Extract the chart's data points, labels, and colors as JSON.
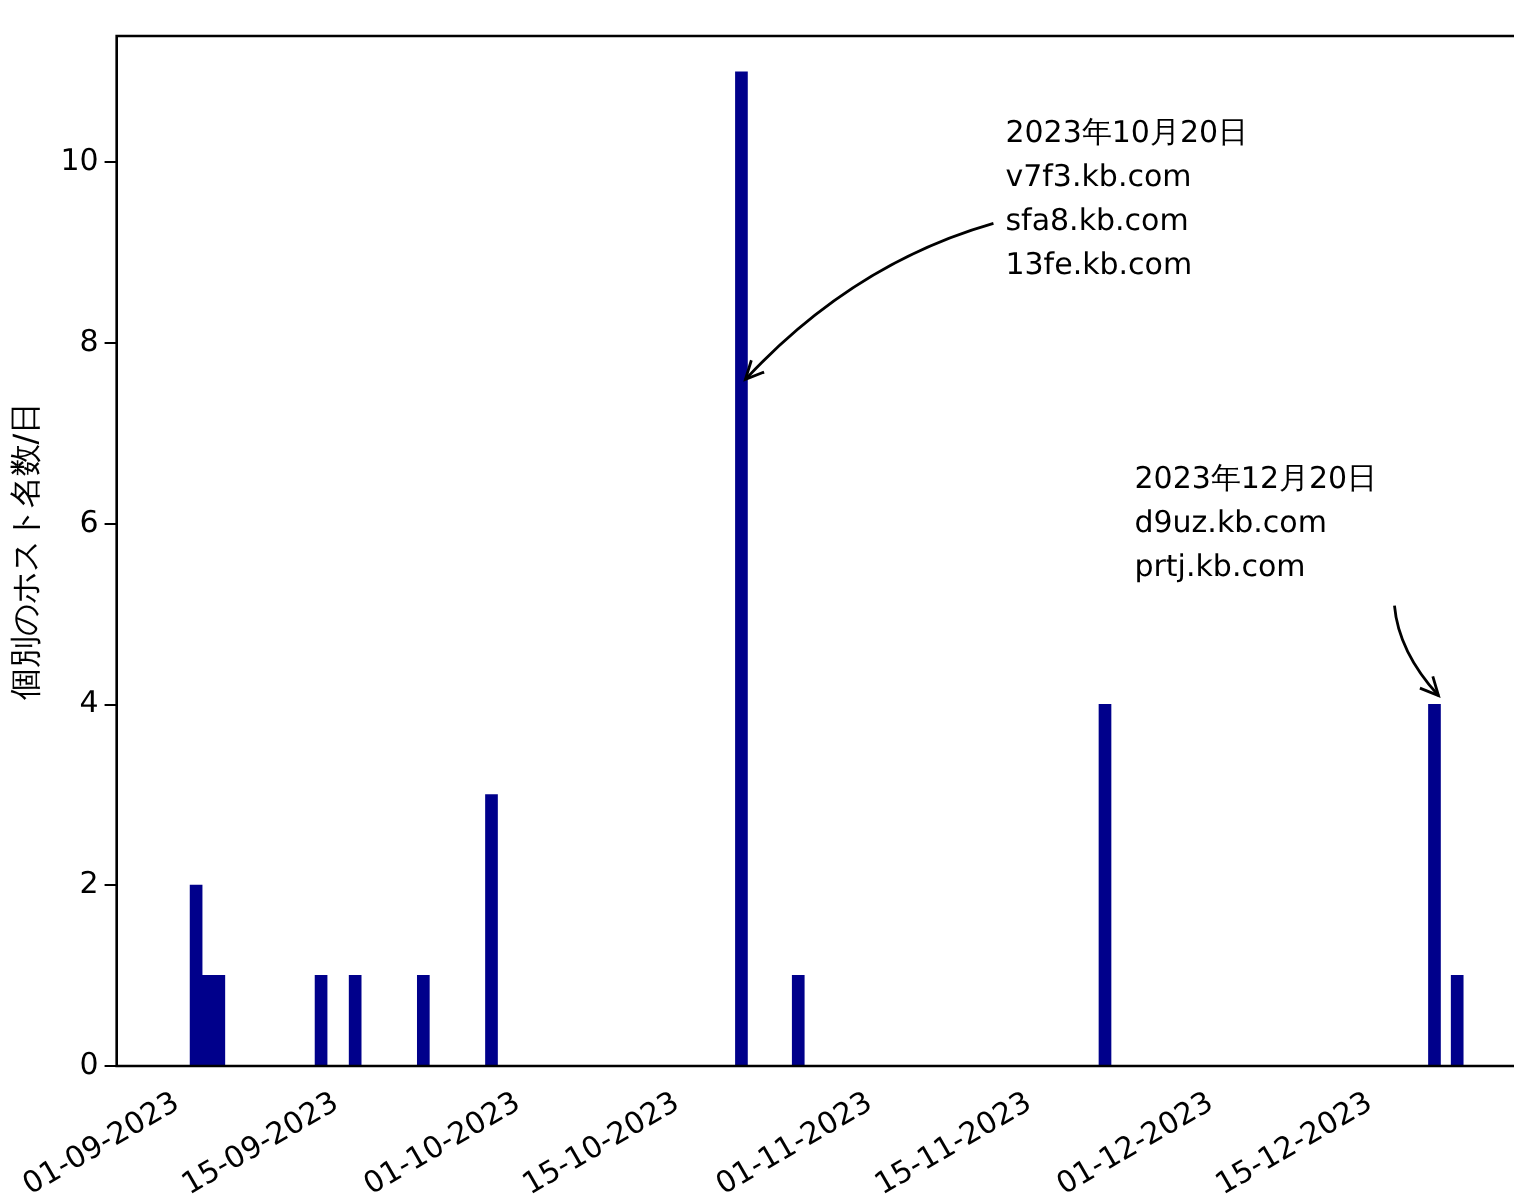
{
  "chart_data": {
    "type": "bar",
    "ylabel": "個別のホスト名数/日",
    "x": [
      "2023-09-02",
      "2023-09-03",
      "2023-09-04",
      "2023-09-13",
      "2023-09-16",
      "2023-09-22",
      "2023-09-28",
      "2023-10-20",
      "2023-10-25",
      "2023-11-21",
      "2023-12-20",
      "2023-12-22"
    ],
    "values": [
      2,
      1,
      1,
      1,
      1,
      1,
      3,
      11,
      1,
      4,
      4,
      1
    ],
    "color": "#00008b",
    "xlim": [
      "2023-08-26",
      "2023-12-27"
    ],
    "xticks": [
      {
        "value": "2023-09-01",
        "label": "01-09-2023"
      },
      {
        "value": "2023-09-15",
        "label": "15-09-2023"
      },
      {
        "value": "2023-10-01",
        "label": "01-10-2023"
      },
      {
        "value": "2023-10-15",
        "label": "15-10-2023"
      },
      {
        "value": "2023-11-01",
        "label": "01-11-2023"
      },
      {
        "value": "2023-11-15",
        "label": "15-11-2023"
      },
      {
        "value": "2023-12-01",
        "label": "01-12-2023"
      },
      {
        "value": "2023-12-15",
        "label": "15-12-2023"
      }
    ],
    "ylim": [
      0,
      11.4
    ],
    "yticks": [
      0,
      2,
      4,
      6,
      8,
      10
    ],
    "grid": false,
    "legend": false,
    "annotations": [
      {
        "text": "2023年10月20日\nv7f3.kb.com\nsfa8.kb.com\n13fe.kb.com",
        "x": "2023-10-20",
        "y": 7.6
      },
      {
        "text": "2023年12月20日\nd9uz.kb.com\nprtj.kb.com",
        "x": "2023-12-20",
        "y": 4.1
      }
    ]
  }
}
